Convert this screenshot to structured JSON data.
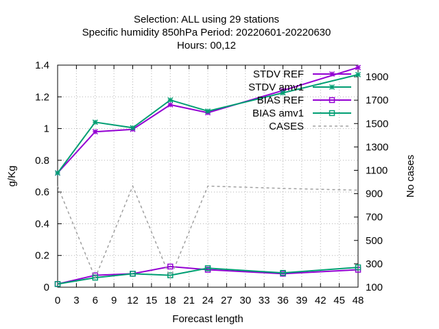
{
  "chart_data": {
    "type": "line",
    "title_lines": [
      "Selection: ALL using    29 stations",
      "Specific humidity 850hPa   Period: 20220601-20220630",
      "Hours:  00,12"
    ],
    "xlabel": "Forecast length",
    "ylabel": "g/Kg",
    "y2label": "No cases",
    "xlim": [
      0,
      48
    ],
    "ylim": [
      0,
      1.4
    ],
    "y2lim": [
      100,
      2000
    ],
    "xticks": [
      "0",
      "3",
      "6",
      "9",
      "12",
      "15",
      "18",
      "21",
      "24",
      "27",
      "30",
      "33",
      "36",
      "39",
      "42",
      "45",
      "48"
    ],
    "yticks": [
      "0",
      "0.2",
      "0.4",
      "0.6",
      "0.8",
      "1",
      "1.2",
      "1.4"
    ],
    "y2ticks": [
      "100",
      "300",
      "500",
      "700",
      "900",
      "1100",
      "1300",
      "1500",
      "1700",
      "1900"
    ],
    "grid": true,
    "legend_position": "top-right",
    "series": [
      {
        "name": "STDV REF",
        "axis": "y",
        "color": "#9400d3",
        "marker": "x",
        "dash": false,
        "x": [
          0,
          6,
          12,
          18,
          24,
          36,
          48
        ],
        "y": [
          0.72,
          0.98,
          0.995,
          1.15,
          1.1,
          1.24,
          1.385
        ]
      },
      {
        "name": "STDV amv1",
        "axis": "y",
        "color": "#009e73",
        "marker": "x",
        "dash": false,
        "x": [
          0,
          6,
          12,
          18,
          24,
          36,
          48
        ],
        "y": [
          0.72,
          1.04,
          1.005,
          1.18,
          1.11,
          1.225,
          1.34
        ]
      },
      {
        "name": "BIAS REF",
        "axis": "y",
        "color": "#9400d3",
        "marker": "square",
        "dash": false,
        "x": [
          0,
          6,
          12,
          18,
          24,
          36,
          48
        ],
        "y": [
          0.02,
          0.075,
          0.085,
          0.13,
          0.11,
          0.085,
          0.11
        ]
      },
      {
        "name": "BIAS amv1",
        "axis": "y",
        "color": "#009e73",
        "marker": "square",
        "dash": false,
        "x": [
          0,
          6,
          12,
          18,
          24,
          36,
          48
        ],
        "y": [
          0.02,
          0.06,
          0.085,
          0.075,
          0.12,
          0.09,
          0.125
        ]
      },
      {
        "name": "CASES",
        "axis": "y2",
        "color": "#a0a0a0",
        "marker": "none",
        "dash": true,
        "x": [
          0,
          6,
          12,
          18,
          24,
          36,
          48
        ],
        "y": [
          965,
          180,
          965,
          180,
          965,
          945,
          930
        ]
      }
    ]
  }
}
